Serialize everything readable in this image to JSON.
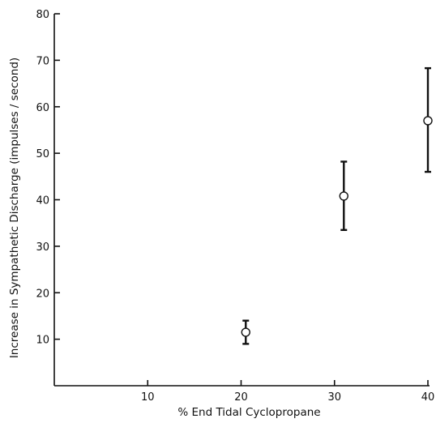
{
  "chart_data": {
    "type": "scatter",
    "xlabel": "% End Tidal Cyclopropane",
    "ylabel": "Increase in Sympathetic Discharge (impulses / second)",
    "xlim": [
      0,
      40
    ],
    "ylim": [
      0,
      80
    ],
    "xticks": [
      10,
      20,
      30,
      40
    ],
    "yticks": [
      10,
      20,
      30,
      40,
      50,
      60,
      70,
      80
    ],
    "grid": false,
    "legend": "none",
    "series": [
      {
        "marker": "open-circle",
        "points": [
          {
            "x": 20.5,
            "y": 11.5,
            "y_low": 9.0,
            "y_high": 14.0
          },
          {
            "x": 31.0,
            "y": 40.8,
            "y_low": 33.5,
            "y_high": 48.2
          },
          {
            "x": 40.0,
            "y": 57.0,
            "y_low": 46.0,
            "y_high": 68.3
          }
        ]
      }
    ]
  },
  "colors": {
    "ink": "#111111",
    "background": "#ffffff"
  }
}
